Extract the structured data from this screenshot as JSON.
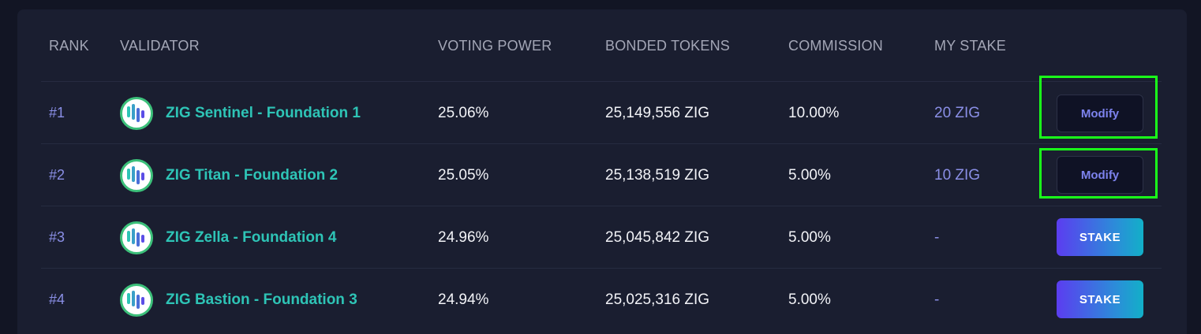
{
  "table": {
    "headers": {
      "rank": "RANK",
      "validator": "VALIDATOR",
      "voting_power": "VOTING POWER",
      "bonded_tokens": "BONDED TOKENS",
      "commission": "COMMISSION",
      "my_stake": "MY STAKE"
    },
    "rows": [
      {
        "rank": "#1",
        "name": "ZIG Sentinel - Foundation 1",
        "voting_power": "25.06%",
        "bonded_tokens": "25,149,556 ZIG",
        "commission": "10.00%",
        "my_stake": "20 ZIG",
        "action": "Modify"
      },
      {
        "rank": "#2",
        "name": "ZIG Titan - Foundation 2",
        "voting_power": "25.05%",
        "bonded_tokens": "25,138,519 ZIG",
        "commission": "5.00%",
        "my_stake": "10 ZIG",
        "action": "Modify"
      },
      {
        "rank": "#3",
        "name": "ZIG Zella - Foundation 4",
        "voting_power": "24.96%",
        "bonded_tokens": "25,045,842 ZIG",
        "commission": "5.00%",
        "my_stake": "-",
        "action": "STAKE"
      },
      {
        "rank": "#4",
        "name": "ZIG Bastion - Foundation 3",
        "voting_power": "24.94%",
        "bonded_tokens": "25,025,316 ZIG",
        "commission": "5.00%",
        "my_stake": "-",
        "action": "STAKE"
      }
    ]
  },
  "colors": {
    "accent_teal": "#2ec4b6",
    "accent_purple": "#8a8fe6",
    "highlight_green": "#1aff1a"
  },
  "icons": {
    "validator_avatar": "zig-logo-icon"
  }
}
